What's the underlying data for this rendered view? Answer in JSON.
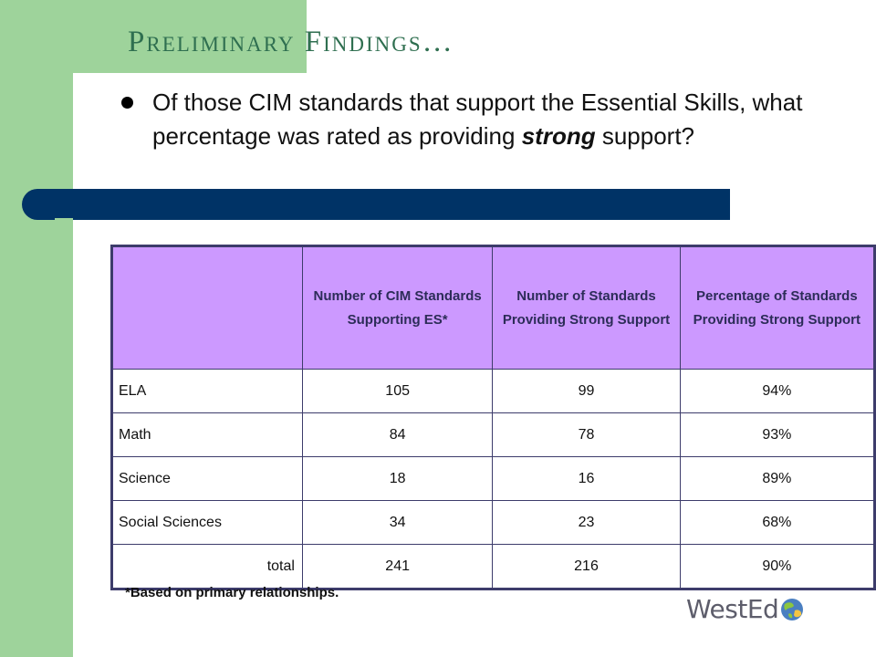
{
  "title": "Preliminary Findings…",
  "bullet": {
    "before": "Of those CIM standards that support the Essential Skills, what percentage was rated as providing ",
    "emphasis": "strong",
    "after": " support?"
  },
  "table": {
    "headers": [
      "",
      "Number of CIM Standards Supporting ES*",
      "Number of Standards Providing Strong Support",
      "Percentage of Standards Providing Strong Support"
    ],
    "rows": [
      [
        "ELA",
        "105",
        "99",
        "94%"
      ],
      [
        "Math",
        "84",
        "78",
        "93%"
      ],
      [
        "Science",
        "18",
        "16",
        "89%"
      ],
      [
        "Social Sciences",
        "34",
        "23",
        "68%"
      ],
      [
        "total",
        "241",
        "216",
        "90%"
      ]
    ]
  },
  "footnote": "*Based on primary relationships.",
  "logo": {
    "text": "WestEd"
  },
  "colors": {
    "green_band": "#9ed39b",
    "title": "#2f6f50",
    "blue_bar": "#003366",
    "header_fill": "#cc99ff",
    "table_border": "#3d3c6b"
  }
}
